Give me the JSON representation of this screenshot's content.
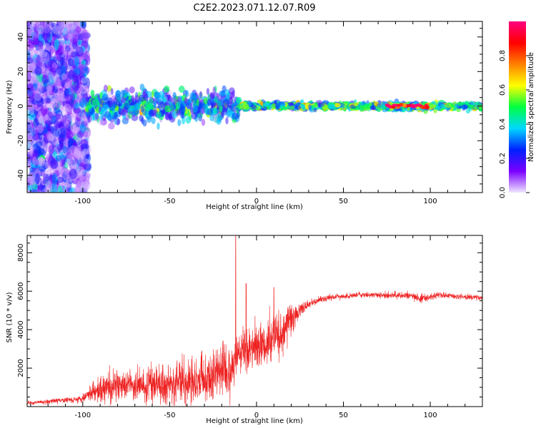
{
  "figure": {
    "title": "C2E2.2023.071.12.07.R09"
  },
  "chart_data": [
    {
      "type": "heatmap",
      "xlabel": "Height of straight line (km)",
      "ylabel": "Frequency (Hz)",
      "xlim": [
        -132,
        130
      ],
      "ylim": [
        -50,
        49
      ],
      "xticks": [
        -100,
        -50,
        0,
        50,
        100
      ],
      "yticks": [
        -40,
        -20,
        0,
        20,
        40
      ],
      "colorbar": {
        "label": "Normalized spectral amplitude",
        "range": [
          0,
          1
        ],
        "ticks": [
          0.0,
          0.2,
          0.4,
          0.6,
          0.8
        ],
        "colormap": [
          "#f0e6ff",
          "#7a00ff",
          "#0020ff",
          "#00d8ff",
          "#00ff40",
          "#ffff00",
          "#ff8000",
          "#ff0000",
          "#ff0080"
        ]
      },
      "regions": [
        {
          "x_range": [
            -132,
            -97
          ],
          "freq_range": [
            -50,
            49
          ],
          "amplitude": 0.1,
          "description": "broadband scatter"
        },
        {
          "x_range": [
            -97,
            -10
          ],
          "freq_range": [
            -8,
            8
          ],
          "amplitude": 0.3,
          "description": "noisy band"
        },
        {
          "x_range": [
            -10,
            130
          ],
          "freq_range": [
            -2,
            2
          ],
          "amplitude": 0.4,
          "description": "narrow band"
        },
        {
          "x_range": [
            75,
            100
          ],
          "freq_range": [
            -1,
            1
          ],
          "amplitude": 0.95,
          "description": "peak"
        }
      ]
    },
    {
      "type": "line",
      "xlabel": "Height of straight line (km)",
      "ylabel": "SNR (10 * v/v)",
      "xlim": [
        -132,
        130
      ],
      "ylim": [
        0,
        8900
      ],
      "xticks": [
        -100,
        -50,
        0,
        50,
        100
      ],
      "yticks": [
        2000,
        4000,
        6000,
        8000
      ],
      "color": "#ee2222",
      "series": [
        {
          "x": [
            -132,
            -120,
            -110,
            -100,
            -95,
            -90,
            -85,
            -80,
            -75,
            -70,
            -65,
            -60,
            -55,
            -50,
            -45,
            -40,
            -35,
            -30,
            -25,
            -20,
            -15,
            -12,
            -10,
            -5,
            0,
            5,
            10,
            15,
            20,
            25,
            30,
            35,
            40,
            50,
            60,
            70,
            80,
            90,
            95,
            100,
            105,
            110,
            120,
            130
          ],
          "y": [
            200,
            250,
            350,
            400,
            700,
            900,
            1000,
            1050,
            1050,
            1100,
            1150,
            1200,
            1200,
            1250,
            1300,
            1350,
            1400,
            1500,
            1650,
            1750,
            1900,
            2500,
            2900,
            3000,
            3100,
            3300,
            3500,
            4000,
            4600,
            5000,
            5300,
            5500,
            5650,
            5750,
            5800,
            5800,
            5800,
            5750,
            5600,
            5700,
            5800,
            5750,
            5700,
            5650
          ],
          "noise": [
            80,
            100,
            120,
            150,
            400,
            700,
            700,
            700,
            650,
            700,
            700,
            700,
            750,
            800,
            800,
            900,
            1000,
            1100,
            1200,
            1200,
            1200,
            800,
            1000,
            1000,
            1000,
            1100,
            1100,
            1000,
            700,
            350,
            200,
            150,
            150,
            120,
            120,
            130,
            150,
            150,
            200,
            150,
            150,
            120,
            120,
            120
          ]
        }
      ],
      "peaks": [
        {
          "x": -12,
          "y": 8900
        },
        {
          "x": -6,
          "y": 6400
        },
        {
          "x": 10,
          "y": 6200
        }
      ]
    }
  ]
}
